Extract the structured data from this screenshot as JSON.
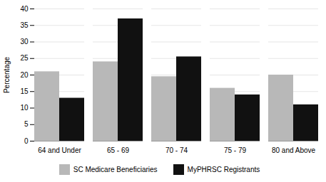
{
  "chart_data": {
    "type": "bar",
    "categories": [
      "64 and Under",
      "65 - 69",
      "70 - 74",
      "75 - 79",
      "80 and Above"
    ],
    "series": [
      {
        "name": "SC Medicare Beneficiaries",
        "color": "#b8b8b8",
        "values": [
          21.0,
          24.0,
          19.5,
          16.0,
          20.0
        ]
      },
      {
        "name": "MyPHRSC Registrants",
        "color": "#111111",
        "values": [
          13.0,
          37.0,
          25.5,
          14.0,
          11.0
        ]
      }
    ],
    "ylabel": "Percentage",
    "ylim": [
      0,
      40.0
    ],
    "yticks": [
      0.0,
      5.0,
      10.0,
      15.0,
      20.0,
      25.0,
      30.0,
      35.0,
      40.0
    ],
    "grid": true,
    "legend": "bottom"
  }
}
